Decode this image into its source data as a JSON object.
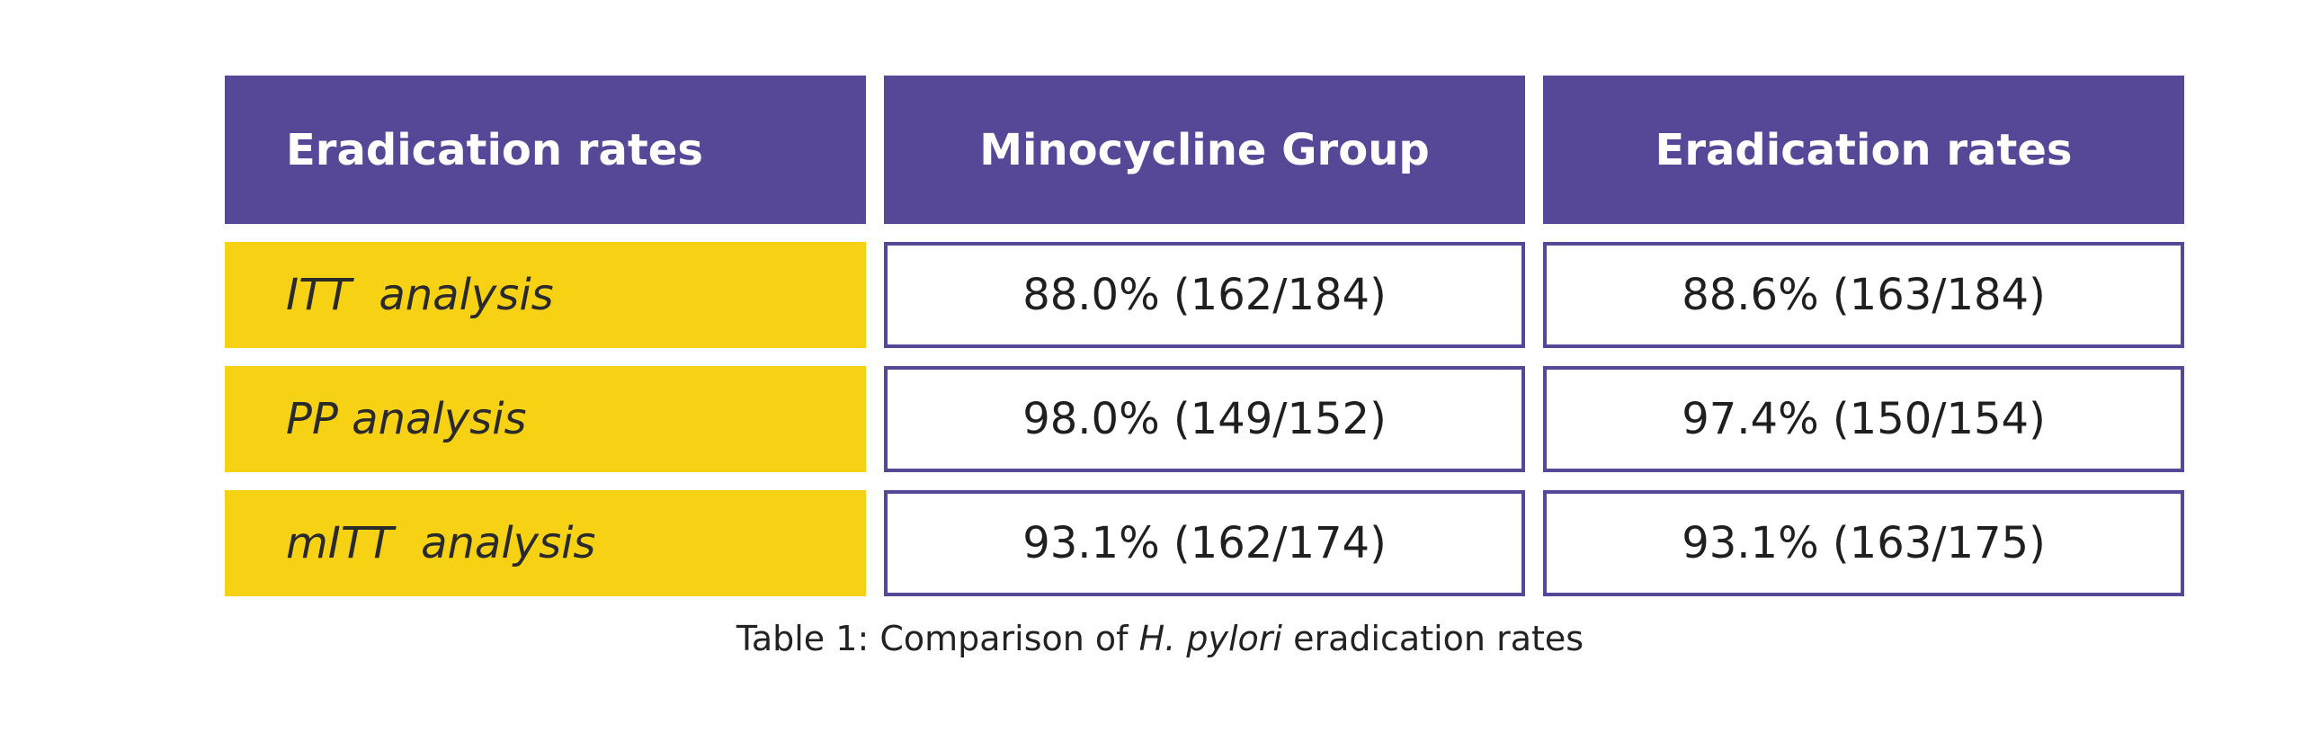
{
  "table": {
    "headers": [
      "Eradication rates",
      "Minocycline Group",
      "Eradication rates"
    ],
    "rows": [
      {
        "label": "ITT  analysis",
        "values": [
          "88.0% (162/184)",
          "88.6% (163/184)"
        ]
      },
      {
        "label": "PP analysis",
        "values": [
          "98.0% (149/152)",
          "97.4% (150/154)"
        ]
      },
      {
        "label": "mITT  analysis",
        "values": [
          "93.1% (162/174)",
          "93.1% (163/175)"
        ]
      }
    ]
  },
  "caption": {
    "prefix": "Table 1: Comparison of ",
    "italic": "H. pylori",
    "suffix": " eradication rates"
  },
  "colors": {
    "header_bg": "#574897",
    "label_bg": "#f7d214",
    "border": "#574897"
  }
}
